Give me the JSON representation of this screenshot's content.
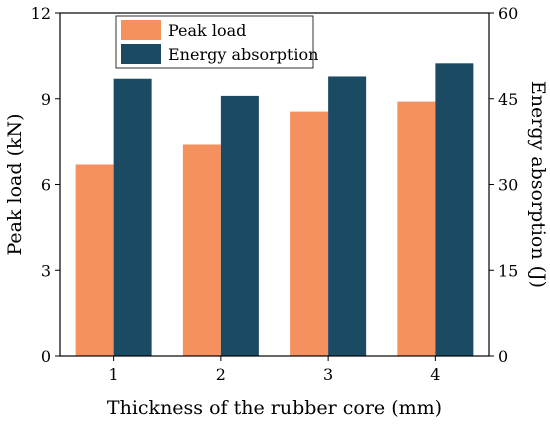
{
  "chart_data": {
    "type": "bar",
    "categories": [
      "1",
      "2",
      "3",
      "4"
    ],
    "xlabel": "Thickness of the rubber core (mm)",
    "ylabel_left": "Peak load (kN)",
    "ylabel_right": "Energy absorption (J)",
    "ylim_left": [
      0,
      12
    ],
    "ylim_right": [
      0,
      60
    ],
    "yticks_left": [
      "0",
      "3",
      "6",
      "9",
      "12"
    ],
    "yticks_right": [
      "0",
      "15",
      "30",
      "45",
      "60"
    ],
    "grid": false,
    "legend_position": "top-left",
    "series": [
      {
        "name": "Peak load",
        "axis": "left",
        "color": "#f4915e",
        "values": [
          6.7,
          7.4,
          8.55,
          8.9
        ]
      },
      {
        "name": "Energy absorption",
        "axis": "right",
        "color": "#1b4a63",
        "values": [
          48.5,
          45.5,
          48.9,
          51.2
        ]
      }
    ]
  }
}
